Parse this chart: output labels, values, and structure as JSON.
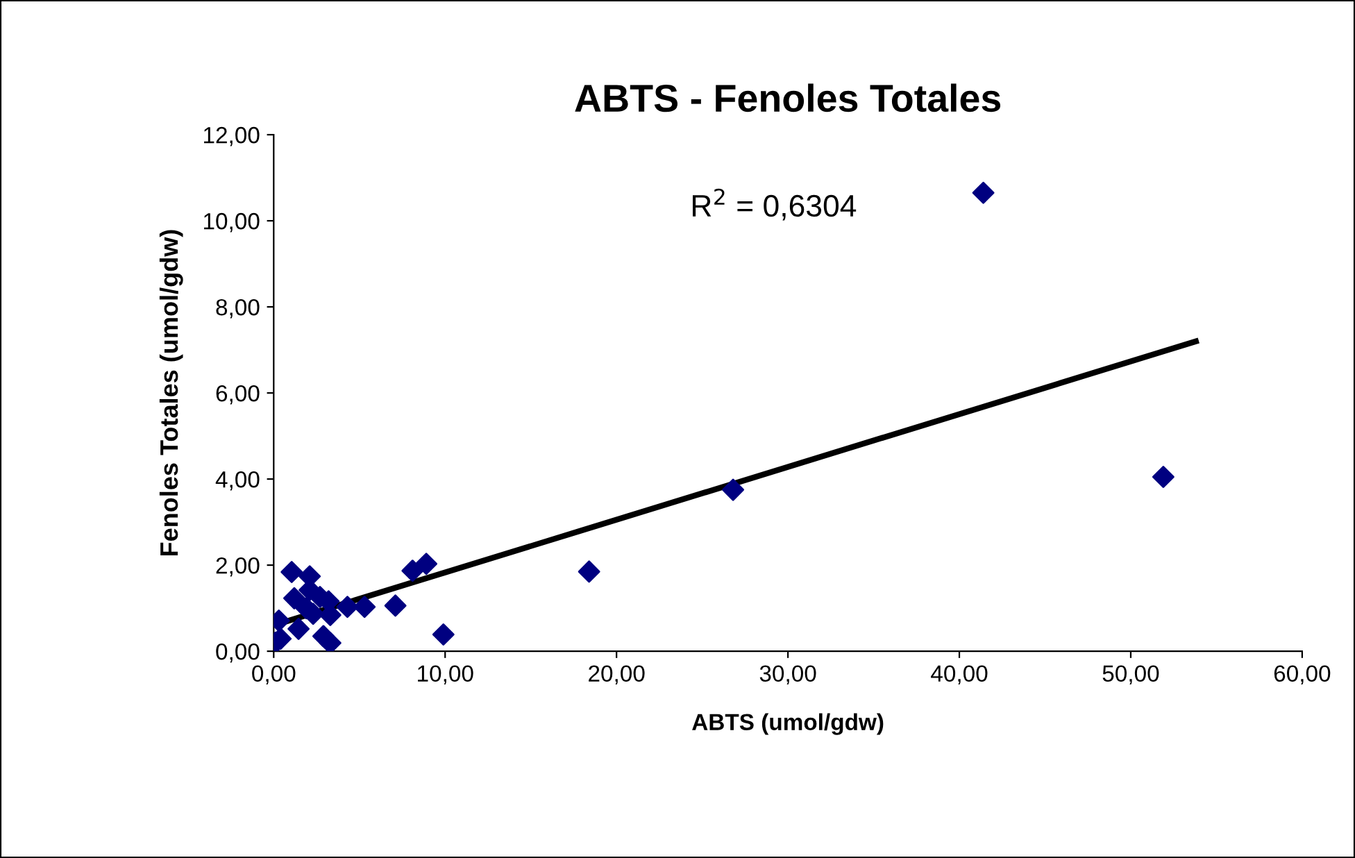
{
  "chart_data": {
    "type": "scatter",
    "title": "ABTS - Fenoles Totales",
    "xlabel": "ABTS (umol/gdw)",
    "ylabel": "Fenoles Totales (umol/gdw)",
    "annotations": [
      "R$^{2}$ = 0,6304"
    ],
    "series": [
      {
        "color": "#000080",
        "marker": "diamond",
        "x": [
          1.05,
          2.1,
          1.2,
          2.1,
          2.7,
          3.2,
          0.3,
          0.4,
          1.45,
          2.9,
          3.3,
          3.3,
          4.3,
          5.3,
          7.1,
          8.1,
          8.9,
          9.9,
          2.3,
          1.9,
          0.1,
          18.4,
          26.8,
          41.4,
          51.9
        ],
        "values": [
          1.84,
          1.74,
          1.23,
          1.42,
          1.26,
          1.16,
          0.71,
          0.29,
          0.52,
          0.35,
          0.19,
          0.84,
          1.03,
          1.03,
          1.06,
          1.87,
          2.03,
          0.39,
          0.87,
          1.0,
          0.2,
          1.85,
          3.75,
          10.65,
          4.05
        ]
      },
      {
        "type": "line",
        "color": "#000000",
        "marker": "none",
        "x": [
          0.3,
          53.8
        ],
        "values": [
          0.64,
          7.2
        ]
      }
    ],
    "xlim": [
      0,
      60
    ],
    "ylim": [
      0,
      12
    ],
    "xticks": [
      {
        "value": 0,
        "label": "0,00"
      },
      {
        "value": 10,
        "label": "10,00"
      },
      {
        "value": 20,
        "label": "20,00"
      },
      {
        "value": 30,
        "label": "30,00"
      },
      {
        "value": 40,
        "label": "40,00"
      },
      {
        "value": 50,
        "label": "50,00"
      },
      {
        "value": 60,
        "label": "60,00"
      }
    ],
    "yticks": [
      {
        "value": 0,
        "label": "0,00"
      },
      {
        "value": 2,
        "label": "2,00"
      },
      {
        "value": 4,
        "label": "4,00"
      },
      {
        "value": 6,
        "label": "6,00"
      },
      {
        "value": 8,
        "label": "8,00"
      },
      {
        "value": 10,
        "label": "10,00"
      },
      {
        "value": 12,
        "label": "12,00"
      }
    ],
    "grid": false,
    "legend": false
  }
}
